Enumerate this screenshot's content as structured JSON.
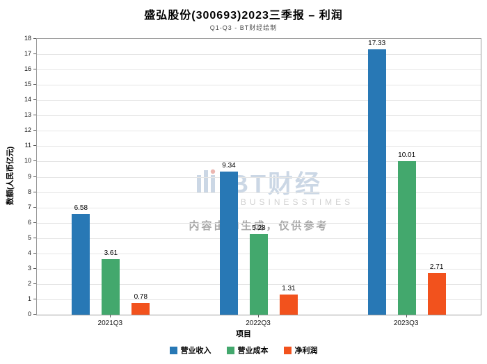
{
  "title": "盛弘股份(300693)2023三季报 – 利润",
  "subtitle": "Q1-Q3 - BT财经绘制",
  "watermark": {
    "logo": "BT财经",
    "sub": "BUSINESSTIMES",
    "note": "内容由AI生成，仅供参考"
  },
  "chart_data": {
    "type": "bar",
    "categories": [
      "2021Q3",
      "2022Q3",
      "2023Q3"
    ],
    "series": [
      {
        "name": "营业收入",
        "color": "#2878b5",
        "values": [
          6.58,
          9.34,
          17.33
        ]
      },
      {
        "name": "营业成本",
        "color": "#43a86d",
        "values": [
          3.61,
          5.28,
          10.01
        ]
      },
      {
        "name": "净利润",
        "color": "#f2521d",
        "values": [
          0.78,
          1.31,
          2.71
        ]
      }
    ],
    "title": "盛弘股份(300693)2023三季报 – 利润",
    "xlabel": "项目",
    "ylabel": "数额(人民币亿元)",
    "ylim": [
      0,
      18
    ],
    "ytick_step": 1,
    "grid": true,
    "legend_position": "bottom"
  }
}
